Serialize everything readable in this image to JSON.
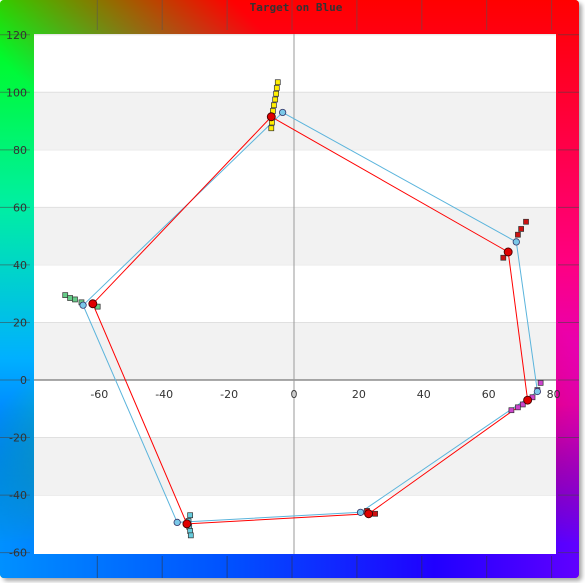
{
  "chart_data": {
    "type": "scatter",
    "title": "Target on Blue",
    "xlabel": "",
    "ylabel": "",
    "xlim": [
      -80,
      80
    ],
    "ylim": [
      -60,
      120
    ],
    "x_ticks": [
      -60,
      -40,
      -20,
      0,
      20,
      40,
      60,
      80
    ],
    "y_ticks": [
      -60,
      -40,
      -20,
      0,
      20,
      40,
      60,
      80,
      100,
      120
    ],
    "grid": "horizontal bands",
    "legend": "none",
    "colors": {
      "target_line": "#ff0000",
      "reference_line": "#5ab4dc",
      "target_marker": "#e00000",
      "reference_marker": "#7ac8e8"
    },
    "target_polygon": [
      {
        "x": -7,
        "y": 91.5
      },
      {
        "x": 66,
        "y": 44.5
      },
      {
        "x": 72,
        "y": -7
      },
      {
        "x": 23,
        "y": -46.5
      },
      {
        "x": -33,
        "y": -50
      },
      {
        "x": -62,
        "y": 26.5
      }
    ],
    "reference_polygon": [
      {
        "x": -3.5,
        "y": 93
      },
      {
        "x": 68.5,
        "y": 48
      },
      {
        "x": 75,
        "y": -4
      },
      {
        "x": 20.5,
        "y": -46
      },
      {
        "x": -36,
        "y": -49.5
      },
      {
        "x": -65,
        "y": 26
      }
    ],
    "sample_series": [
      {
        "color": "#ffee00",
        "points": [
          {
            "x": -5,
            "y": 103.5
          },
          {
            "x": -5.3,
            "y": 101.5
          },
          {
            "x": -5.5,
            "y": 99.5
          },
          {
            "x": -5.8,
            "y": 97.5
          },
          {
            "x": -6.2,
            "y": 95.5
          },
          {
            "x": -6.5,
            "y": 93.5
          },
          {
            "x": -6.8,
            "y": 89.5
          },
          {
            "x": -7,
            "y": 87.5
          }
        ]
      },
      {
        "color": "#cc1111",
        "points": [
          {
            "x": 71.5,
            "y": 55
          },
          {
            "x": 70,
            "y": 52.5
          },
          {
            "x": 69,
            "y": 50.5
          },
          {
            "x": 64.5,
            "y": 42.5
          }
        ]
      },
      {
        "color": "#cc44cc",
        "points": [
          {
            "x": 76,
            "y": -1
          },
          {
            "x": 75,
            "y": -3.5
          },
          {
            "x": 73.5,
            "y": -6
          },
          {
            "x": 70.5,
            "y": -8.5
          },
          {
            "x": 69,
            "y": -9.5
          },
          {
            "x": 67,
            "y": -10.5
          }
        ]
      },
      {
        "color": "#cc1111",
        "points": [
          {
            "x": 22.5,
            "y": -45.5
          },
          {
            "x": 25,
            "y": -46.5
          }
        ]
      },
      {
        "color": "#66ccdd",
        "points": [
          {
            "x": -32,
            "y": -47
          },
          {
            "x": -32.5,
            "y": -49
          },
          {
            "x": -32.3,
            "y": -51
          },
          {
            "x": -32,
            "y": -52.5
          },
          {
            "x": -31.8,
            "y": -54
          }
        ]
      },
      {
        "color": "#66cc88",
        "points": [
          {
            "x": -70.5,
            "y": 29.5
          },
          {
            "x": -69,
            "y": 28.5
          },
          {
            "x": -67.5,
            "y": 28
          },
          {
            "x": -65.5,
            "y": 27
          },
          {
            "x": -60.5,
            "y": 25.5
          }
        ]
      }
    ]
  }
}
